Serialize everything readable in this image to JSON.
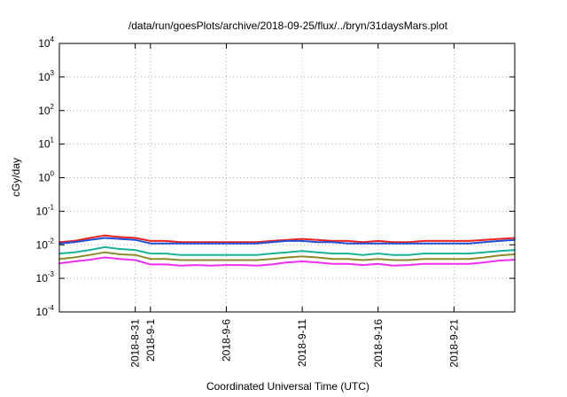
{
  "chart_data": {
    "type": "line",
    "title": "/data/run/goesPlots/archive/2018-09-25/flux/../bryn/31daysMars.plot",
    "xlabel": "Coordinated Universal Time (UTC)",
    "ylabel": "cGy/day",
    "yscale": "log",
    "ylim": [
      0.0001,
      10000
    ],
    "xlim": [
      "2018-08-26",
      "2018-09-25"
    ],
    "grid": true,
    "legend": "none",
    "y_ticks": [
      {
        "base": "10",
        "exp": "-4",
        "value": 0.0001
      },
      {
        "base": "10",
        "exp": "-3",
        "value": 0.001
      },
      {
        "base": "10",
        "exp": "-2",
        "value": 0.01
      },
      {
        "base": "10",
        "exp": "-1",
        "value": 0.1
      },
      {
        "base": "10",
        "exp": "0",
        "value": 1
      },
      {
        "base": "10",
        "exp": "1",
        "value": 10
      },
      {
        "base": "10",
        "exp": "2",
        "value": 100
      },
      {
        "base": "10",
        "exp": "3",
        "value": 1000
      },
      {
        "base": "10",
        "exp": "4",
        "value": 10000
      }
    ],
    "x_ticks": [
      {
        "label": "2018-8-31",
        "date": "2018-08-31"
      },
      {
        "label": "2018-9-1",
        "date": "2018-09-01"
      },
      {
        "label": "2018-9-6",
        "date": "2018-09-06"
      },
      {
        "label": "2018-9-11",
        "date": "2018-09-11"
      },
      {
        "label": "2018-9-16",
        "date": "2018-09-16"
      },
      {
        "label": "2018-9-21",
        "date": "2018-09-21"
      }
    ],
    "series": [
      {
        "color": "#e8231f",
        "points": [
          [
            "2018-08-26",
            0.012
          ],
          [
            "2018-08-27",
            0.013
          ],
          [
            "2018-08-28",
            0.016
          ],
          [
            "2018-08-29",
            0.019
          ],
          [
            "2018-08-30",
            0.017
          ],
          [
            "2018-08-31",
            0.016
          ],
          [
            "2018-09-01",
            0.013
          ],
          [
            "2018-09-02",
            0.013
          ],
          [
            "2018-09-03",
            0.012
          ],
          [
            "2018-09-04",
            0.012
          ],
          [
            "2018-09-05",
            0.012
          ],
          [
            "2018-09-06",
            0.012
          ],
          [
            "2018-09-07",
            0.012
          ],
          [
            "2018-09-08",
            0.012
          ],
          [
            "2018-09-09",
            0.013
          ],
          [
            "2018-09-10",
            0.014
          ],
          [
            "2018-09-11",
            0.015
          ],
          [
            "2018-09-12",
            0.014
          ],
          [
            "2018-09-13",
            0.013
          ],
          [
            "2018-09-14",
            0.013
          ],
          [
            "2018-09-15",
            0.012
          ],
          [
            "2018-09-16",
            0.013
          ],
          [
            "2018-09-17",
            0.012
          ],
          [
            "2018-09-18",
            0.012
          ],
          [
            "2018-09-19",
            0.013
          ],
          [
            "2018-09-20",
            0.013
          ],
          [
            "2018-09-21",
            0.013
          ],
          [
            "2018-09-22",
            0.013
          ],
          [
            "2018-09-23",
            0.014
          ],
          [
            "2018-09-24",
            0.015
          ],
          [
            "2018-09-25",
            0.016
          ]
        ]
      },
      {
        "color": "#1f4fd8",
        "points": [
          [
            "2018-08-26",
            0.011
          ],
          [
            "2018-08-27",
            0.012
          ],
          [
            "2018-08-28",
            0.014
          ],
          [
            "2018-08-29",
            0.016
          ],
          [
            "2018-08-30",
            0.015
          ],
          [
            "2018-08-31",
            0.014
          ],
          [
            "2018-09-01",
            0.011
          ],
          [
            "2018-09-02",
            0.011
          ],
          [
            "2018-09-03",
            0.011
          ],
          [
            "2018-09-04",
            0.011
          ],
          [
            "2018-09-05",
            0.011
          ],
          [
            "2018-09-06",
            0.011
          ],
          [
            "2018-09-07",
            0.011
          ],
          [
            "2018-09-08",
            0.011
          ],
          [
            "2018-09-09",
            0.012
          ],
          [
            "2018-09-10",
            0.013
          ],
          [
            "2018-09-11",
            0.013
          ],
          [
            "2018-09-12",
            0.012
          ],
          [
            "2018-09-13",
            0.012
          ],
          [
            "2018-09-14",
            0.011
          ],
          [
            "2018-09-15",
            0.011
          ],
          [
            "2018-09-16",
            0.011
          ],
          [
            "2018-09-17",
            0.011
          ],
          [
            "2018-09-18",
            0.011
          ],
          [
            "2018-09-19",
            0.011
          ],
          [
            "2018-09-20",
            0.011
          ],
          [
            "2018-09-21",
            0.011
          ],
          [
            "2018-09-22",
            0.011
          ],
          [
            "2018-09-23",
            0.012
          ],
          [
            "2018-09-24",
            0.013
          ],
          [
            "2018-09-25",
            0.014
          ]
        ]
      },
      {
        "color": "#18b39b",
        "points": [
          [
            "2018-08-26",
            0.0055
          ],
          [
            "2018-08-27",
            0.006
          ],
          [
            "2018-08-28",
            0.007
          ],
          [
            "2018-08-29",
            0.0085
          ],
          [
            "2018-08-30",
            0.0075
          ],
          [
            "2018-08-31",
            0.007
          ],
          [
            "2018-09-01",
            0.0055
          ],
          [
            "2018-09-02",
            0.0055
          ],
          [
            "2018-09-03",
            0.005
          ],
          [
            "2018-09-04",
            0.005
          ],
          [
            "2018-09-05",
            0.005
          ],
          [
            "2018-09-06",
            0.005
          ],
          [
            "2018-09-07",
            0.005
          ],
          [
            "2018-09-08",
            0.005
          ],
          [
            "2018-09-09",
            0.0055
          ],
          [
            "2018-09-10",
            0.006
          ],
          [
            "2018-09-11",
            0.0065
          ],
          [
            "2018-09-12",
            0.006
          ],
          [
            "2018-09-13",
            0.0055
          ],
          [
            "2018-09-14",
            0.0055
          ],
          [
            "2018-09-15",
            0.005
          ],
          [
            "2018-09-16",
            0.0055
          ],
          [
            "2018-09-17",
            0.005
          ],
          [
            "2018-09-18",
            0.005
          ],
          [
            "2018-09-19",
            0.0055
          ],
          [
            "2018-09-20",
            0.0055
          ],
          [
            "2018-09-21",
            0.0055
          ],
          [
            "2018-09-22",
            0.0055
          ],
          [
            "2018-09-23",
            0.006
          ],
          [
            "2018-09-24",
            0.0065
          ],
          [
            "2018-09-25",
            0.007
          ]
        ]
      },
      {
        "color": "#8a8a28",
        "points": [
          [
            "2018-08-26",
            0.0038
          ],
          [
            "2018-08-27",
            0.0042
          ],
          [
            "2018-08-28",
            0.005
          ],
          [
            "2018-08-29",
            0.006
          ],
          [
            "2018-08-30",
            0.0052
          ],
          [
            "2018-08-31",
            0.005
          ],
          [
            "2018-09-01",
            0.0038
          ],
          [
            "2018-09-02",
            0.0038
          ],
          [
            "2018-09-03",
            0.0035
          ],
          [
            "2018-09-04",
            0.0035
          ],
          [
            "2018-09-05",
            0.0035
          ],
          [
            "2018-09-06",
            0.0035
          ],
          [
            "2018-09-07",
            0.0035
          ],
          [
            "2018-09-08",
            0.0035
          ],
          [
            "2018-09-09",
            0.0038
          ],
          [
            "2018-09-10",
            0.0042
          ],
          [
            "2018-09-11",
            0.0045
          ],
          [
            "2018-09-12",
            0.0042
          ],
          [
            "2018-09-13",
            0.0038
          ],
          [
            "2018-09-14",
            0.0038
          ],
          [
            "2018-09-15",
            0.0035
          ],
          [
            "2018-09-16",
            0.0038
          ],
          [
            "2018-09-17",
            0.0035
          ],
          [
            "2018-09-18",
            0.0035
          ],
          [
            "2018-09-19",
            0.0038
          ],
          [
            "2018-09-20",
            0.0038
          ],
          [
            "2018-09-21",
            0.0038
          ],
          [
            "2018-09-22",
            0.0038
          ],
          [
            "2018-09-23",
            0.0042
          ],
          [
            "2018-09-24",
            0.0048
          ],
          [
            "2018-09-25",
            0.0052
          ]
        ]
      },
      {
        "color": "#ee2fee",
        "points": [
          [
            "2018-08-26",
            0.0028
          ],
          [
            "2018-08-27",
            0.0032
          ],
          [
            "2018-08-28",
            0.0036
          ],
          [
            "2018-08-29",
            0.0042
          ],
          [
            "2018-08-30",
            0.0038
          ],
          [
            "2018-08-31",
            0.0035
          ],
          [
            "2018-09-01",
            0.0026
          ],
          [
            "2018-09-02",
            0.0026
          ],
          [
            "2018-09-03",
            0.0024
          ],
          [
            "2018-09-04",
            0.0025
          ],
          [
            "2018-09-05",
            0.0024
          ],
          [
            "2018-09-06",
            0.0025
          ],
          [
            "2018-09-07",
            0.0025
          ],
          [
            "2018-09-08",
            0.0024
          ],
          [
            "2018-09-09",
            0.0026
          ],
          [
            "2018-09-10",
            0.003
          ],
          [
            "2018-09-11",
            0.0032
          ],
          [
            "2018-09-12",
            0.003
          ],
          [
            "2018-09-13",
            0.0027
          ],
          [
            "2018-09-14",
            0.0027
          ],
          [
            "2018-09-15",
            0.0025
          ],
          [
            "2018-09-16",
            0.0027
          ],
          [
            "2018-09-17",
            0.0024
          ],
          [
            "2018-09-18",
            0.0025
          ],
          [
            "2018-09-19",
            0.0027
          ],
          [
            "2018-09-20",
            0.0027
          ],
          [
            "2018-09-21",
            0.0027
          ],
          [
            "2018-09-22",
            0.0027
          ],
          [
            "2018-09-23",
            0.003
          ],
          [
            "2018-09-24",
            0.0034
          ],
          [
            "2018-09-25",
            0.0036
          ]
        ]
      }
    ]
  }
}
